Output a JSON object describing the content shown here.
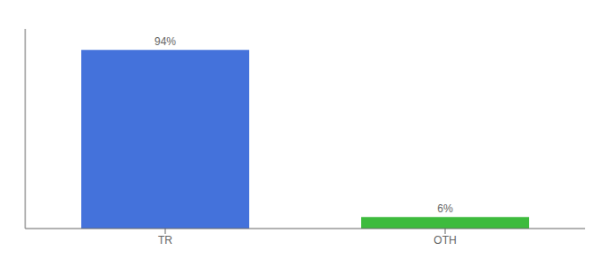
{
  "chart_data": {
    "type": "bar",
    "categories": [
      "TR",
      "OTH"
    ],
    "values": [
      94,
      6
    ],
    "value_labels": [
      "94%",
      "6%"
    ],
    "colors": [
      "#4472db",
      "#3dbb3d"
    ],
    "ylim": [
      0,
      105
    ],
    "data_labels": true,
    "tick_labels": "x"
  }
}
